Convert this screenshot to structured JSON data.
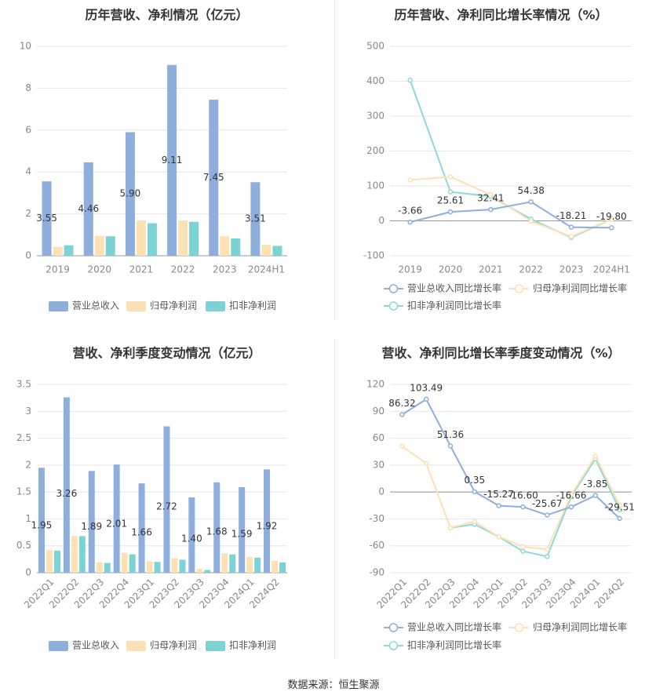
{
  "colors": {
    "revenue": "#8eaedc",
    "net_profit": "#fde0b4",
    "deducted_net_profit": "#7dd3d3",
    "revenue_line": "#8eaedc",
    "net_profit_line": "#fde0b4",
    "deducted_line": "#8fd8d8",
    "grid": "#e6e6e6",
    "axis_text": "#888888",
    "title": "#333333"
  },
  "chart_data": [
    {
      "type": "bar",
      "title": "历年营收、净利情况（亿元）",
      "categories": [
        "2019",
        "2020",
        "2021",
        "2022",
        "2023",
        "2024H1"
      ],
      "ylim": [
        0,
        10
      ],
      "yticks": [
        0,
        2,
        4,
        6,
        8,
        10
      ],
      "series": [
        {
          "name": "营业总收入",
          "values": [
            3.55,
            4.46,
            5.9,
            9.11,
            7.45,
            3.51
          ],
          "labels": [
            "3.55",
            "4.46",
            "5.90",
            "9.11",
            "7.45",
            "3.51"
          ]
        },
        {
          "name": "归母净利润",
          "values": [
            0.42,
            0.95,
            1.68,
            1.68,
            0.93,
            0.52
          ]
        },
        {
          "name": "扣非净利润",
          "values": [
            0.5,
            0.93,
            1.55,
            1.62,
            0.83,
            0.47
          ]
        }
      ],
      "legend": "bottom"
    },
    {
      "type": "line",
      "title": "历年营收、净利同比增长率情况（%）",
      "categories": [
        "2019",
        "2020",
        "2021",
        "2022",
        "2023",
        "2024H1"
      ],
      "ylim": [
        -100,
        500
      ],
      "yticks": [
        -100,
        0,
        100,
        200,
        300,
        400,
        500
      ],
      "series": [
        {
          "name": "营业总收入同比增长率",
          "values": [
            -3.66,
            25.61,
            32.41,
            54.38,
            -18.21,
            -19.8
          ],
          "labels": [
            "-3.66",
            "25.61",
            "32.41",
            "54.38",
            "-18.21",
            "-19.80"
          ]
        },
        {
          "name": "归母净利润同比增长率",
          "values": [
            117,
            126,
            75,
            -1,
            -45,
            5
          ]
        },
        {
          "name": "扣非净利润同比增长率",
          "values": [
            403,
            83,
            70,
            5,
            -48,
            5
          ]
        }
      ],
      "legend": "bottom"
    },
    {
      "type": "bar",
      "title": "营收、净利季度变动情况（亿元）",
      "categories": [
        "2022Q1",
        "2022Q2",
        "2022Q3",
        "2022Q4",
        "2023Q1",
        "2023Q2",
        "2023Q3",
        "2023Q4",
        "2024Q1",
        "2024Q2"
      ],
      "ylim": [
        0,
        3.5
      ],
      "yticks": [
        0,
        0.5,
        1,
        1.5,
        2,
        2.5,
        3,
        3.5
      ],
      "series": [
        {
          "name": "营业总收入",
          "values": [
            1.95,
            3.26,
            1.89,
            2.01,
            1.66,
            2.72,
            1.4,
            1.68,
            1.59,
            1.92
          ],
          "labels": [
            "1.95",
            "3.26",
            "1.89",
            "2.01",
            "1.66",
            "2.72",
            "1.40",
            "1.68",
            "1.59",
            "1.92"
          ]
        },
        {
          "name": "归母净利润",
          "values": [
            0.42,
            0.68,
            0.19,
            0.37,
            0.21,
            0.27,
            0.07,
            0.36,
            0.29,
            0.22
          ]
        },
        {
          "name": "扣非净利润",
          "values": [
            0.41,
            0.68,
            0.18,
            0.34,
            0.2,
            0.24,
            0.05,
            0.34,
            0.28,
            0.19
          ]
        }
      ],
      "legend": "bottom"
    },
    {
      "type": "line",
      "title": "营收、净利同比增长率季度变动情况（%）",
      "categories": [
        "2022Q1",
        "2022Q2",
        "2022Q3",
        "2022Q4",
        "2023Q1",
        "2023Q2",
        "2023Q3",
        "2023Q4",
        "2024Q1",
        "2024Q2"
      ],
      "ylim": [
        -90,
        120
      ],
      "yticks": [
        -90,
        -60,
        -30,
        0,
        30,
        60,
        90,
        120
      ],
      "series": [
        {
          "name": "营业总收入同比增长率",
          "values": [
            86.32,
            103.49,
            51.36,
            0.35,
            -15.27,
            -16.6,
            -25.67,
            -16.66,
            -3.85,
            -29.51
          ],
          "labels": [
            "86.32",
            "103.49",
            "51.36",
            "0.35",
            "-15.27",
            "-16.60",
            "-25.67",
            "-16.66",
            "-3.85",
            "-29.51"
          ]
        },
        {
          "name": "归母净利润同比增长率",
          "values": [
            51,
            32,
            -40,
            -33,
            -50,
            -61,
            -64,
            -3,
            40,
            -15
          ]
        },
        {
          "name": "扣非净利润同比增长率",
          "values": [
            null,
            null,
            -40,
            -36,
            -50,
            -66,
            -72,
            -5,
            37,
            -20
          ]
        }
      ],
      "legend": "bottom"
    }
  ],
  "footer": {
    "source": "数据来源：恒生聚源"
  }
}
